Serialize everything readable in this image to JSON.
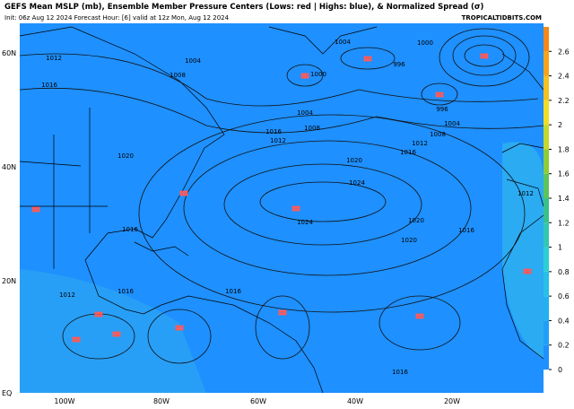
{
  "header": {
    "title": "GEFS Mean MSLP (mb), Ensemble Member Pressure Centers (Lows: red | Highs: blue), & Normalized Spread (σ)",
    "subtitle": "Init: 06z Aug 12 2024   Forecast Hour: [6]   valid at 12z Mon, Aug 12 2024",
    "source": "TROPICALTIDBITS.COM"
  },
  "lat_labels": [
    "60N",
    "40N",
    "20N",
    "EQ"
  ],
  "lon_labels": [
    "100W",
    "80W",
    "60W",
    "40W",
    "20W"
  ],
  "contour_labels": [
    "1004",
    "1008",
    "1012",
    "1016",
    "1020",
    "1016",
    "1012",
    "1016",
    "1020",
    "1024",
    "1024",
    "1020",
    "1020",
    "1016",
    "1016",
    "1012",
    "1008",
    "1004",
    "1000",
    "1004",
    "996",
    "1000",
    "996",
    "1004",
    "1008",
    "1012",
    "1016",
    "1016",
    "1016",
    "1012"
  ],
  "colorbar": {
    "lim": [
      0,
      2.8
    ],
    "ticks": [
      0,
      0.2,
      0.4,
      0.6,
      0.8,
      1,
      1.2,
      1.4,
      1.6,
      1.8,
      2,
      2.2,
      2.4,
      2.6
    ],
    "colors": [
      "#1e90ff",
      "#1fa0f8",
      "#22b0f0",
      "#26c0e6",
      "#2acfd6",
      "#2fc8b4",
      "#38c08c",
      "#5cc45a",
      "#8ccc3a",
      "#c4d82e",
      "#f2dc26",
      "#f6c020",
      "#f6a21c",
      "#f4881a"
    ]
  }
}
